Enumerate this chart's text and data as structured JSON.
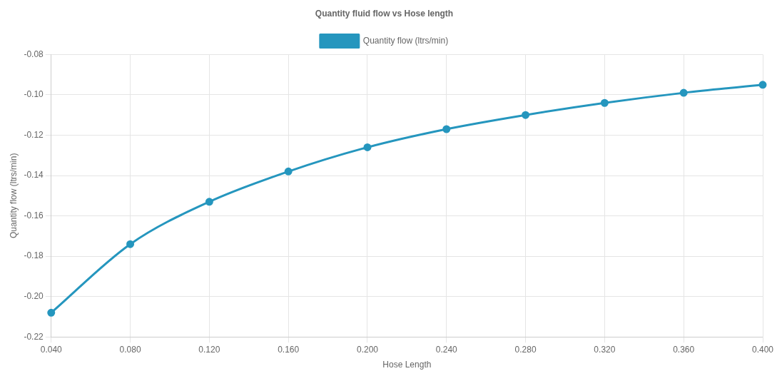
{
  "chart_data": {
    "type": "line",
    "title": "Quantity fluid flow vs Hose length",
    "xlabel": "Hose Length",
    "ylabel": "Quantity flow (ltrs/min)",
    "categories": [
      "0.040",
      "0.080",
      "0.120",
      "0.160",
      "0.200",
      "0.240",
      "0.280",
      "0.320",
      "0.360",
      "0.400"
    ],
    "series": [
      {
        "name": "Quantity flow (ltrs/min)",
        "color": "#2596be",
        "values": [
          -0.208,
          -0.174,
          -0.153,
          -0.138,
          -0.126,
          -0.117,
          -0.11,
          -0.104,
          -0.099,
          -0.095
        ]
      }
    ],
    "ylim": [
      -0.22,
      -0.08
    ],
    "yticks": [
      -0.22,
      {
        "value": -0.2,
        "label": "-0.20"
      },
      -0.18,
      -0.16,
      -0.14,
      -0.12,
      {
        "value": -0.1,
        "label": "-0.10"
      },
      -0.08
    ],
    "grid": true,
    "legend": "top",
    "marker": "circle",
    "line_style": "solid"
  }
}
